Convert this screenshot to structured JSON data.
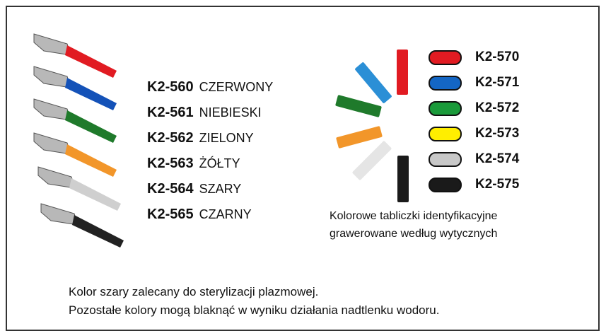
{
  "products": [
    {
      "code": "K2-560",
      "color": "CZERWONY"
    },
    {
      "code": "K2-561",
      "color": "NIEBIESKI"
    },
    {
      "code": "K2-562",
      "color": "ZIELONY"
    },
    {
      "code": "K2-563",
      "color": "ŻÓŁTY"
    },
    {
      "code": "K2-564",
      "color": "SZARY"
    },
    {
      "code": "K2-565",
      "color": "CZARNY"
    }
  ],
  "tags": [
    "K2-570",
    "K2-571",
    "K2-572",
    "K2-573",
    "K2-574",
    "K2-575"
  ],
  "tags_caption": [
    "Kolorowe tabliczki identyfikacyjne",
    "grawerowane według wytycznych"
  ],
  "notes": [
    "Kolor szary zalecany do sterylizacji plazmowej.",
    "Pozostałe kolory mogą blaknąć w wyniku działania nadtlenku wodoru."
  ]
}
